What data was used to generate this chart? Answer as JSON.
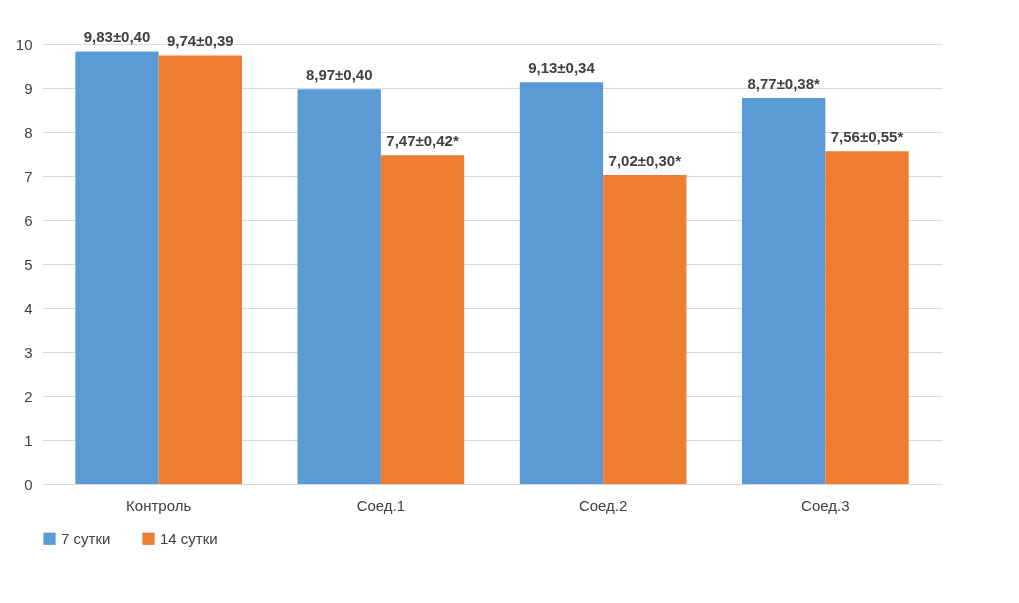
{
  "chart_data": {
    "type": "bar",
    "categories": [
      "Контроль",
      "Соед.1",
      "Соед.2",
      "Соед.3"
    ],
    "series": [
      {
        "name": "7 сутки",
        "color": "#5b9bd5",
        "values": [
          9.83,
          8.97,
          9.13,
          8.77
        ],
        "value_labels": [
          "9,83±0,40",
          "8,97±0,40",
          "9,13±0,34",
          "8,77±0,38*"
        ]
      },
      {
        "name": "14 сутки",
        "color": "#ed7d31",
        "values": [
          9.74,
          7.47,
          7.02,
          7.56
        ],
        "value_labels": [
          "9,74±0,39",
          "7,47±0,42*",
          "7,02±0,30*",
          "7,56±0,55*"
        ]
      }
    ],
    "ylim": [
      0,
      10
    ],
    "yticks": [
      0,
      1,
      2,
      3,
      4,
      5,
      6,
      7,
      8,
      9,
      10
    ],
    "grid": true,
    "legend": "bottom"
  }
}
